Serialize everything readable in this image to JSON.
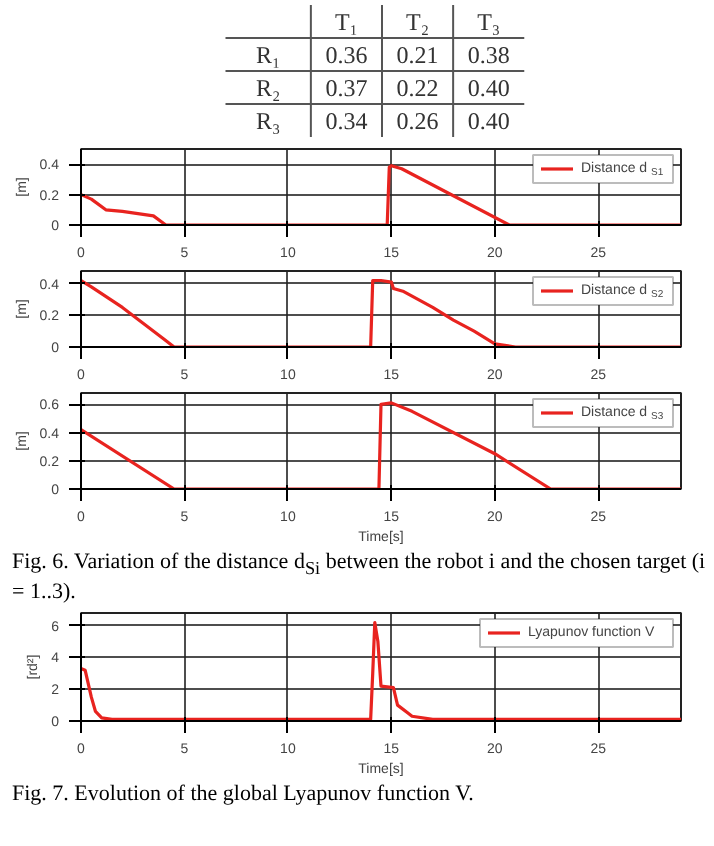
{
  "chart_data": [
    {
      "type": "heatmap",
      "categories": [
        "T₁",
        "T₂",
        "T₃"
      ],
      "y_categories": [
        "R₁",
        "R₂",
        "R₃"
      ],
      "cells": [
        [
          0.36,
          0.21,
          0.38
        ],
        [
          0.37,
          0.22,
          0.4
        ],
        [
          0.34,
          0.26,
          0.4
        ]
      ],
      "cell_labels": [
        [
          "0.36",
          "0.21",
          "0.38"
        ],
        [
          "0.37",
          "0.22",
          "0.40"
        ],
        [
          "0.34",
          "0.26",
          "0.40"
        ]
      ]
    },
    {
      "type": "line",
      "ylabel": "[m]",
      "xlim": [
        0,
        29
      ],
      "ylim": [
        0,
        0.5
      ],
      "xticks": [
        0,
        5,
        10,
        15,
        20,
        25
      ],
      "yticks": [
        0,
        0.2,
        0.4
      ],
      "grid": true,
      "legend": "top right",
      "series": [
        {
          "name": "Distance d$_{S1}$",
          "color": "#e8231f",
          "x": [
            0,
            0.5,
            1.2,
            2,
            3,
            3.5,
            4,
            4.1,
            14.8,
            14.9,
            15,
            15.5,
            20.7,
            29
          ],
          "values": [
            0.2,
            0.17,
            0.1,
            0.09,
            0.07,
            0.06,
            0.01,
            0,
            0,
            0.38,
            0.39,
            0.37,
            0,
            0
          ]
        }
      ]
    },
    {
      "type": "line",
      "ylabel": "[m]",
      "xlim": [
        0,
        29
      ],
      "ylim": [
        0,
        0.48
      ],
      "xticks": [
        0,
        5,
        10,
        15,
        20,
        25
      ],
      "yticks": [
        0,
        0.2,
        0.4
      ],
      "grid": true,
      "legend": "top right",
      "series": [
        {
          "name": "Distance d$_{S2}$",
          "color": "#e8231f",
          "x": [
            0,
            0.5,
            2,
            3,
            4,
            4.5,
            14,
            14.1,
            14.5,
            15,
            15.1,
            15.6,
            17,
            18,
            19,
            20,
            21,
            29
          ],
          "values": [
            0.42,
            0.38,
            0.25,
            0.15,
            0.05,
            0,
            0,
            0.42,
            0.42,
            0.41,
            0.37,
            0.35,
            0.25,
            0.17,
            0.1,
            0.02,
            0,
            0
          ]
        }
      ]
    },
    {
      "type": "line",
      "ylabel": "[m]",
      "xlabel": "Time[s]",
      "xlim": [
        0,
        29
      ],
      "ylim": [
        0,
        0.68
      ],
      "xticks": [
        0,
        5,
        10,
        15,
        20,
        25
      ],
      "yticks": [
        0,
        0.2,
        0.4,
        0.6
      ],
      "grid": true,
      "legend": "top right",
      "annotations": [
        "Fig. 6.   Variation of the distance d$_{Si}$ between the robot i and the chosen target (i = 1..3)."
      ],
      "series": [
        {
          "name": "Distance d$_{S3}$",
          "color": "#e8231f",
          "x": [
            0,
            4.5,
            14.4,
            14.5,
            15,
            16,
            20,
            22.7,
            29
          ],
          "values": [
            0.42,
            0,
            0,
            0.6,
            0.61,
            0.55,
            0.25,
            0,
            0
          ]
        }
      ]
    },
    {
      "type": "line",
      "ylabel": "[rd²]",
      "xlabel": "Time[s]",
      "xlim": [
        0,
        29
      ],
      "ylim": [
        0,
        6.8
      ],
      "xticks": [
        0,
        5,
        10,
        15,
        20,
        25
      ],
      "yticks": [
        0,
        2,
        4,
        6
      ],
      "grid": true,
      "legend": "top right",
      "annotations": [
        "Fig. 7.   Evolution of the global Lyapunov function V."
      ],
      "series": [
        {
          "name": "Lyapunov function V",
          "color": "#e8231f",
          "x": [
            0,
            0.2,
            0.5,
            0.7,
            1,
            1.5,
            14,
            14.1,
            14.2,
            14.35,
            14.5,
            15.1,
            15.3,
            15.8,
            16,
            17,
            29
          ],
          "values": [
            3.3,
            3.2,
            1.5,
            0.6,
            0.2,
            0.1,
            0.1,
            3,
            6.2,
            5,
            2.2,
            2.1,
            1,
            0.5,
            0.3,
            0.1,
            0.1
          ]
        }
      ]
    }
  ]
}
